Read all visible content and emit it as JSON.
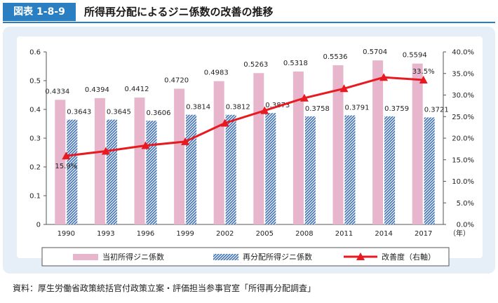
{
  "header": {
    "figure_label": "図表 1-8-9",
    "title": "所得再分配によるジニ係数の改善の推移"
  },
  "colors": {
    "accent": "#2a7fc2",
    "panel_bg": "#e6eef7",
    "initial_bar": "#e8b6cc",
    "redistribution_bar": "#3a6fb5",
    "improvement_line": "#e8191f"
  },
  "chart_data": {
    "type": "bar",
    "categories": [
      "1990",
      "1993",
      "1996",
      "1999",
      "2002",
      "2005",
      "2008",
      "2011",
      "2014",
      "2017"
    ],
    "x_unit": "（年）",
    "ylim_left": [
      0,
      0.6
    ],
    "yticks_left": [
      "0",
      "0.1",
      "0.2",
      "0.3",
      "0.4",
      "0.5",
      "0.6"
    ],
    "ylim_right": [
      0,
      40
    ],
    "yticks_right": [
      "0.0%",
      "5.0%",
      "10.0%",
      "15.0%",
      "20.0%",
      "25.0%",
      "30.0%",
      "35.0%",
      "40.0%"
    ],
    "series": [
      {
        "name": "当初所得ジニ係数",
        "kind": "bar",
        "axis": "left",
        "values": [
          0.4334,
          0.4394,
          0.4412,
          0.472,
          0.4983,
          0.5263,
          0.5318,
          0.5536,
          0.5704,
          0.5594
        ],
        "labels": [
          "0.4334",
          "0.4394",
          "0.4412",
          "0.4720",
          "0.4983",
          "0.5263",
          "0.5318",
          "0.5536",
          "0.5704",
          "0.5594"
        ]
      },
      {
        "name": "再分配所得ジニ係数",
        "kind": "bar",
        "axis": "left",
        "pattern": "diagonal-hatch",
        "values": [
          0.3643,
          0.3645,
          0.3606,
          0.3814,
          0.3812,
          0.3873,
          0.3758,
          0.3791,
          0.3759,
          0.3721
        ],
        "labels": [
          "0.3643",
          "0.3645",
          "0.3606",
          "0.3814",
          "0.3812",
          "0.3873",
          "0.3758",
          "0.3791",
          "0.3759",
          "0.3721"
        ]
      },
      {
        "name": "改善度（右軸）",
        "kind": "line",
        "axis": "right",
        "marker": "triangle",
        "values": [
          15.9,
          17.0,
          18.3,
          19.2,
          23.5,
          26.4,
          29.3,
          31.5,
          34.1,
          33.5
        ],
        "labels": [
          "15.9%",
          "",
          "",
          "",
          "",
          "",
          "",
          "",
          "",
          "33.5%"
        ]
      }
    ],
    "legend_position": "bottom"
  },
  "source": "資料：厚生労働省政策統括官付政策立案・評価担当参事官室「所得再分配調査」"
}
